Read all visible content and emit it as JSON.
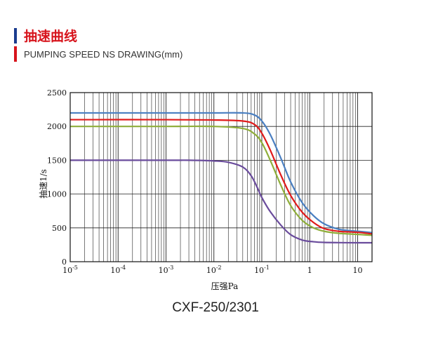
{
  "header": {
    "title": "抽速曲线",
    "subtitle": "PUMPING SPEED    NS DRAWING(mm)",
    "bar_colors": [
      "#1b3c8f",
      "#d7141c"
    ]
  },
  "model_label": "CXF-250/2301",
  "chart_data": {
    "type": "line",
    "xlabel": "压强Pa",
    "ylabel": "抽速1/s",
    "xscale": "log",
    "xlim": [
      1e-05,
      20
    ],
    "ylim": [
      0,
      2500
    ],
    "yticks": [
      0,
      500,
      1000,
      1500,
      2000,
      2500
    ],
    "xticks": [
      {
        "value": 1e-05,
        "base": "10",
        "exp": "-5"
      },
      {
        "value": 0.0001,
        "base": "10",
        "exp": "-4"
      },
      {
        "value": 0.001,
        "base": "10",
        "exp": "-3"
      },
      {
        "value": 0.01,
        "base": "10",
        "exp": "-2"
      },
      {
        "value": 0.1,
        "base": "10",
        "exp": "-1"
      },
      {
        "value": 1,
        "base": "1",
        "exp": ""
      },
      {
        "value": 10,
        "base": "10",
        "exp": ""
      }
    ],
    "grid": true,
    "series": [
      {
        "color": "#4a7fc1",
        "x": [
          1e-05,
          0.001,
          0.01,
          0.04,
          0.07,
          0.1,
          0.15,
          0.25,
          0.4,
          0.7,
          1.2,
          2,
          4,
          7,
          12,
          20
        ],
        "y": [
          2200,
          2200,
          2200,
          2200,
          2170,
          2080,
          1880,
          1530,
          1180,
          870,
          680,
          560,
          480,
          460,
          445,
          430
        ]
      },
      {
        "color": "#e01a1a",
        "x": [
          1e-05,
          0.001,
          0.01,
          0.04,
          0.07,
          0.1,
          0.15,
          0.25,
          0.4,
          0.7,
          1.2,
          2,
          4,
          7,
          12,
          20
        ],
        "y": [
          2100,
          2100,
          2095,
          2080,
          2030,
          1900,
          1650,
          1280,
          980,
          730,
          580,
          490,
          450,
          440,
          430,
          410
        ]
      },
      {
        "color": "#8fae3a",
        "x": [
          1e-05,
          0.001,
          0.01,
          0.04,
          0.07,
          0.1,
          0.15,
          0.25,
          0.4,
          0.7,
          1.2,
          2,
          4,
          7,
          12,
          20
        ],
        "y": [
          2000,
          2000,
          2000,
          1970,
          1890,
          1760,
          1500,
          1130,
          830,
          610,
          500,
          450,
          420,
          410,
          400,
          390
        ]
      },
      {
        "color": "#6a4c9c",
        "x": [
          1e-05,
          0.001,
          0.003,
          0.01,
          0.02,
          0.04,
          0.06,
          0.08,
          0.1,
          0.15,
          0.25,
          0.4,
          0.7,
          1.2,
          2,
          4,
          10,
          20
        ],
        "y": [
          1500,
          1500,
          1500,
          1490,
          1470,
          1400,
          1270,
          1100,
          950,
          740,
          540,
          400,
          320,
          295,
          285,
          282,
          280,
          280
        ]
      }
    ]
  }
}
